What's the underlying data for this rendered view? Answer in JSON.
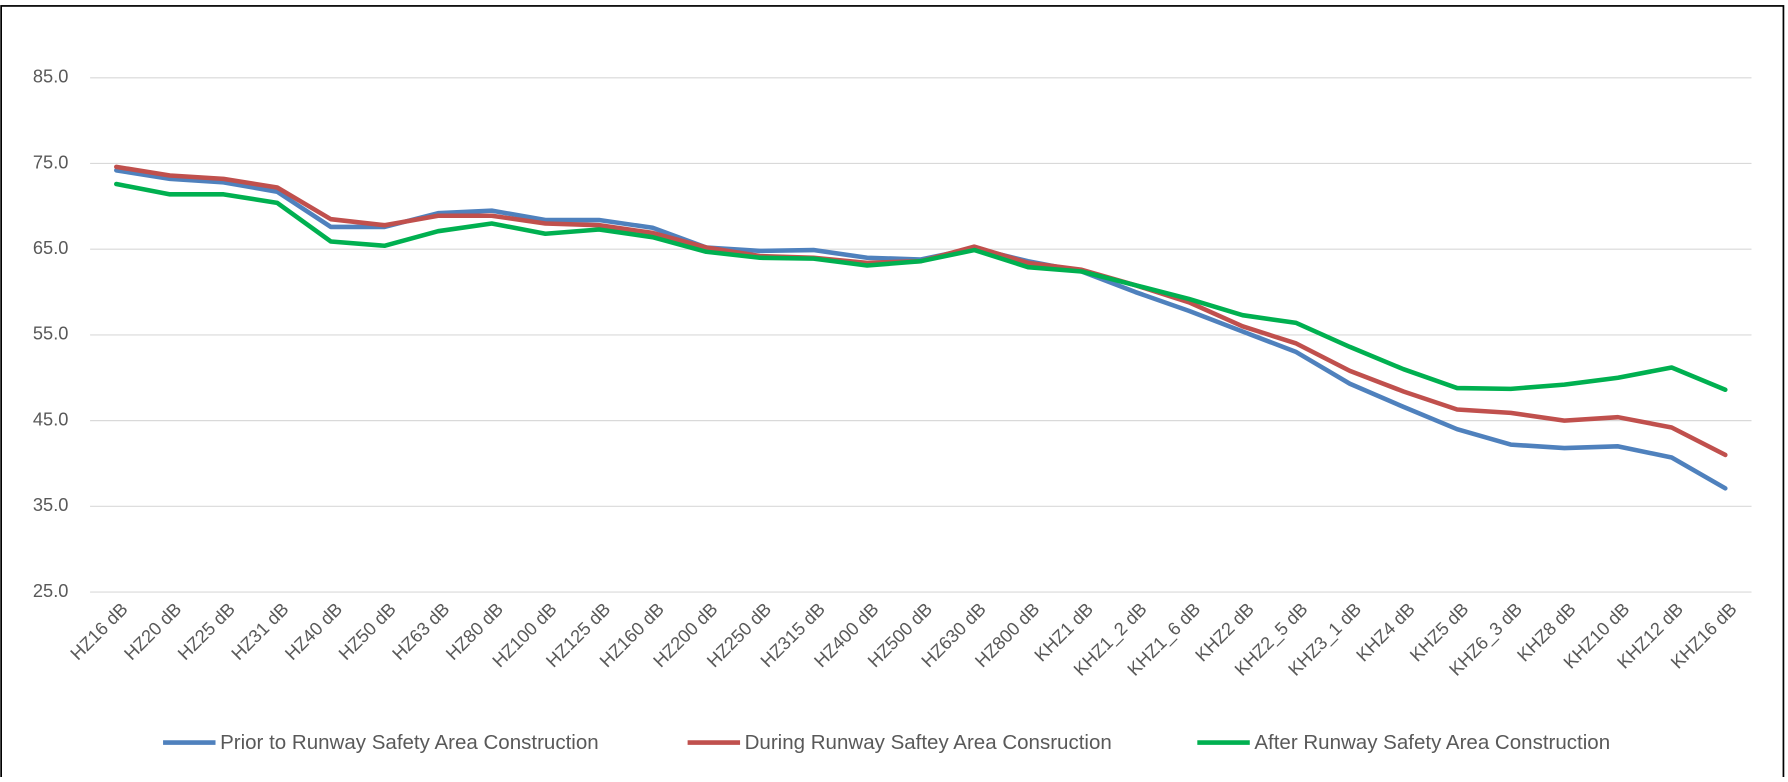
{
  "chart_data": {
    "type": "line",
    "categories": [
      "HZ16 dB",
      "HZ20 dB",
      "HZ25 dB",
      "HZ31 dB",
      "HZ40 dB",
      "HZ50 dB",
      "HZ63 dB",
      "HZ80 dB",
      "HZ100 dB",
      "HZ125 dB",
      "HZ160 dB",
      "HZ200 dB",
      "HZ250 dB",
      "HZ315 dB",
      "HZ400 dB",
      "HZ500 dB",
      "HZ630 dB",
      "HZ800 dB",
      "KHZ1 dB",
      "KHZ1_2 dB",
      "KHZ1_6 dB",
      "KHZ2 dB",
      "KHZ2_5 dB",
      "KHZ3_1 dB",
      "KHZ4 dB",
      "KHZ5 dB",
      "KHZ6_3 dB",
      "KHZ8 dB",
      "KHZ10 dB",
      "KHZ12 dB",
      "KHZ16 dB"
    ],
    "series": [
      {
        "name": "Prior to Runway Safety Area Construction",
        "color": "#4f81bd",
        "values": [
          74.2,
          73.2,
          72.8,
          71.7,
          67.6,
          67.6,
          69.2,
          69.5,
          68.4,
          68.4,
          67.5,
          65.2,
          64.8,
          64.9,
          64.0,
          63.8,
          65.1,
          63.6,
          62.4,
          60.0,
          57.8,
          55.4,
          53.0,
          49.3,
          46.6,
          44.0,
          42.2,
          41.8,
          42.0,
          40.7,
          37.1
        ]
      },
      {
        "name": "During Runway Saftey Area Consruction",
        "color": "#c0504d",
        "values": [
          74.6,
          73.6,
          73.2,
          72.2,
          68.5,
          67.8,
          68.9,
          68.9,
          68.0,
          67.8,
          66.9,
          65.2,
          64.2,
          64.0,
          63.4,
          63.6,
          65.3,
          63.4,
          62.6,
          60.8,
          58.8,
          56.0,
          54.0,
          50.8,
          48.4,
          46.3,
          45.9,
          45.0,
          45.4,
          44.2,
          41.0
        ]
      },
      {
        "name": "After Runway Safety Area Construction",
        "color": "#00b050",
        "values": [
          72.6,
          71.4,
          71.4,
          70.4,
          65.9,
          65.4,
          67.1,
          68.0,
          66.8,
          67.3,
          66.4,
          64.7,
          64.0,
          63.9,
          63.1,
          63.6,
          64.9,
          62.9,
          62.4,
          60.8,
          59.2,
          57.3,
          56.4,
          53.6,
          51.0,
          48.8,
          48.7,
          49.2,
          50.0,
          51.2,
          48.6
        ]
      }
    ],
    "ylim": [
      25,
      85
    ],
    "yticks": [
      {
        "value": 25,
        "label": "25.0"
      },
      {
        "value": 35,
        "label": "35.0"
      },
      {
        "value": 45,
        "label": "45.0"
      },
      {
        "value": 55,
        "label": "55.0"
      },
      {
        "value": 65,
        "label": "65.0"
      },
      {
        "value": 75,
        "label": "75.0"
      },
      {
        "value": 85,
        "label": "85.0"
      }
    ],
    "grid": true,
    "legend": "bottom"
  }
}
